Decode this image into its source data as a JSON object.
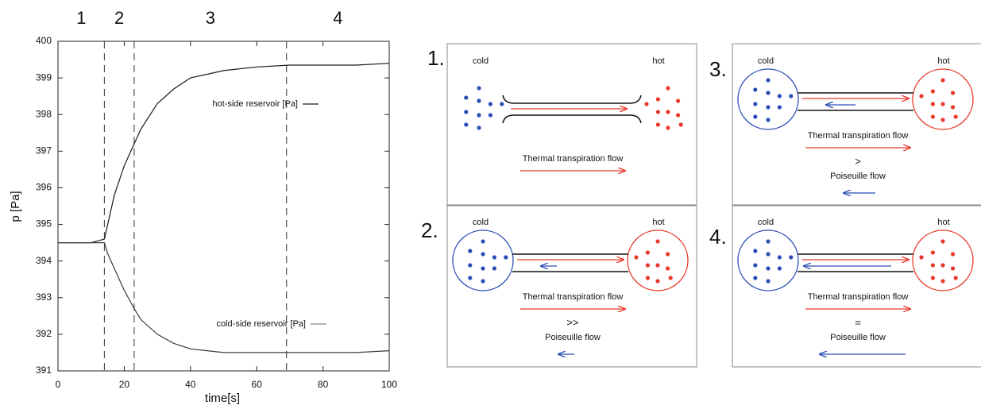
{
  "chart_data": {
    "type": "line",
    "phase_labels": [
      "1",
      "2",
      "3",
      "4"
    ],
    "xlabel": "time[s]",
    "ylabel": "p [Pa]",
    "x": [
      0,
      5,
      10,
      14,
      15,
      17,
      20,
      23,
      25,
      30,
      35,
      40,
      50,
      60,
      70,
      80,
      90,
      100
    ],
    "series": [
      {
        "name": "hot-side reservoir [Pa]",
        "color": "#1a1a1a",
        "values": [
          394.5,
          394.5,
          394.5,
          394.6,
          395.0,
          395.8,
          396.6,
          397.2,
          397.6,
          398.3,
          398.7,
          399.0,
          399.2,
          399.3,
          399.35,
          399.35,
          399.35,
          399.4
        ]
      },
      {
        "name": "cold-side reservoir [Pa]",
        "color": "#3a3a3a",
        "values": [
          394.5,
          394.5,
          394.5,
          394.5,
          394.2,
          393.8,
          393.2,
          392.7,
          392.4,
          392.0,
          391.75,
          391.6,
          391.5,
          391.5,
          391.5,
          391.5,
          391.5,
          391.55
        ]
      }
    ],
    "vlines": [
      14,
      23,
      69
    ],
    "xlim": [
      0,
      100
    ],
    "xticks": [
      0,
      20,
      40,
      60,
      80,
      100
    ],
    "ylim": [
      391,
      400
    ],
    "yticks": [
      391,
      392,
      393,
      394,
      395,
      396,
      397,
      398,
      399,
      400
    ]
  },
  "diagram": {
    "panels": [
      {
        "label": "1.",
        "cold": "cold",
        "hot": "hot",
        "flow": "Thermal transpiration flow"
      },
      {
        "label": "2.",
        "cold": "cold",
        "hot": "hot",
        "flow": "Thermal transpiration flow",
        "relation": ">>",
        "counterflow": "Poiseuille flow"
      },
      {
        "label": "3.",
        "cold": "cold",
        "hot": "hot",
        "flow": "Thermal transpiration flow",
        "relation": ">",
        "counterflow": "Poiseuille flow"
      },
      {
        "label": "4.",
        "cold": "cold",
        "hot": "hot",
        "flow": "Thermal transpiration flow",
        "relation": "=",
        "counterflow": "Poiseuille flow"
      }
    ]
  }
}
